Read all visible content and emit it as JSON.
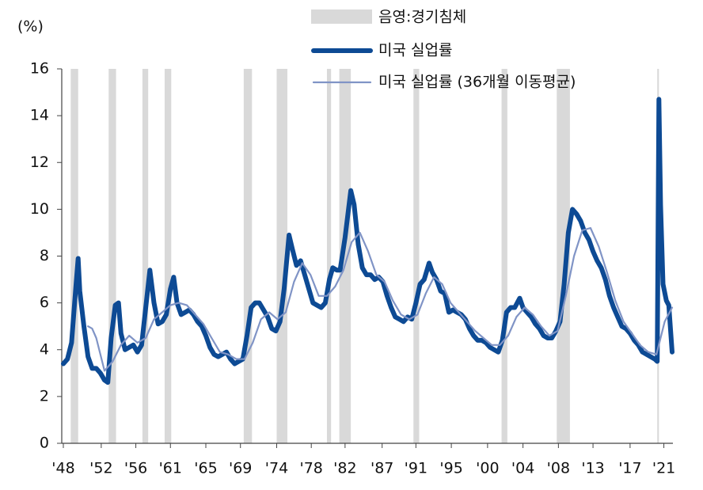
{
  "chart_data": {
    "type": "line",
    "y_label": "(%)",
    "xlim": [
      1948,
      2022
    ],
    "ylim": [
      0,
      16
    ],
    "yticks": [
      0,
      2,
      4,
      6,
      8,
      10,
      12,
      14,
      16
    ],
    "xticks": [
      {
        "value": 1948.0,
        "label": "'48"
      },
      {
        "value": 1952.6,
        "label": "'52"
      },
      {
        "value": 1956.8,
        "label": "'56"
      },
      {
        "value": 1961.0,
        "label": "'61"
      },
      {
        "value": 1965.3,
        "label": "'65"
      },
      {
        "value": 1969.5,
        "label": "'69"
      },
      {
        "value": 1973.9,
        "label": "'74"
      },
      {
        "value": 1978.1,
        "label": "'78"
      },
      {
        "value": 1982.2,
        "label": "'82"
      },
      {
        "value": 1986.7,
        "label": "'87"
      },
      {
        "value": 1990.8,
        "label": "'91"
      },
      {
        "value": 1995.1,
        "label": "'95"
      },
      {
        "value": 1999.5,
        "label": "'00"
      },
      {
        "value": 2003.8,
        "label": "'04"
      },
      {
        "value": 2008.1,
        "label": "'08"
      },
      {
        "value": 2012.3,
        "label": "'13"
      },
      {
        "value": 2016.8,
        "label": "'17"
      },
      {
        "value": 2020.9,
        "label": "'21"
      }
    ],
    "grid": false,
    "recessions": {
      "name": "음영:경기침체",
      "color": "#d9d9d9",
      "ranges": [
        [
          1948.9,
          1949.8
        ],
        [
          1953.5,
          1954.4
        ],
        [
          1957.6,
          1958.3
        ],
        [
          1960.3,
          1961.1
        ],
        [
          1969.9,
          1970.9
        ],
        [
          1973.9,
          1975.2
        ],
        [
          1980.0,
          1980.5
        ],
        [
          1981.5,
          1982.9
        ],
        [
          1990.5,
          1991.2
        ],
        [
          2001.2,
          2001.9
        ],
        [
          2007.9,
          2009.5
        ],
        [
          2020.1,
          2020.3
        ]
      ]
    },
    "series": [
      {
        "name": "미국 실업률",
        "color": "#0d4a94",
        "width": 6,
        "x": [
          1948.0,
          1948.5,
          1949.0,
          1949.5,
          1949.8,
          1950.0,
          1950.5,
          1951.0,
          1951.5,
          1952.0,
          1952.5,
          1953.0,
          1953.4,
          1953.8,
          1954.3,
          1954.7,
          1955.0,
          1955.5,
          1956.0,
          1956.5,
          1957.0,
          1957.5,
          1958.0,
          1958.5,
          1959.0,
          1959.5,
          1960.0,
          1960.5,
          1961.0,
          1961.4,
          1961.8,
          1962.3,
          1962.8,
          1963.3,
          1963.8,
          1964.3,
          1964.8,
          1965.3,
          1965.8,
          1966.3,
          1966.8,
          1967.3,
          1967.8,
          1968.3,
          1968.8,
          1969.3,
          1969.8,
          1970.3,
          1970.8,
          1971.3,
          1971.8,
          1972.3,
          1972.8,
          1973.3,
          1973.8,
          1974.3,
          1974.8,
          1975.4,
          1975.8,
          1976.3,
          1976.8,
          1977.3,
          1977.8,
          1978.3,
          1978.8,
          1979.3,
          1979.8,
          1980.3,
          1980.7,
          1981.2,
          1981.6,
          1982.2,
          1982.9,
          1983.3,
          1983.8,
          1984.3,
          1984.8,
          1985.3,
          1985.8,
          1986.3,
          1986.8,
          1987.3,
          1987.8,
          1988.3,
          1988.8,
          1989.3,
          1989.8,
          1990.3,
          1990.8,
          1991.3,
          1991.8,
          1992.4,
          1992.8,
          1993.3,
          1993.8,
          1994.3,
          1994.8,
          1995.3,
          1995.8,
          1996.3,
          1996.8,
          1997.3,
          1997.8,
          1998.3,
          1998.8,
          1999.3,
          1999.8,
          2000.3,
          2000.8,
          2001.3,
          2001.8,
          2002.3,
          2002.8,
          2003.4,
          2003.8,
          2004.3,
          2004.8,
          2005.3,
          2005.8,
          2006.3,
          2006.8,
          2007.3,
          2007.8,
          2008.3,
          2008.8,
          2009.3,
          2009.8,
          2010.3,
          2010.8,
          2011.3,
          2011.8,
          2012.3,
          2012.8,
          2013.3,
          2013.8,
          2014.3,
          2014.8,
          2015.3,
          2015.8,
          2016.3,
          2016.8,
          2017.3,
          2017.8,
          2018.3,
          2018.8,
          2019.3,
          2019.8,
          2020.1,
          2020.3,
          2020.5,
          2020.8,
          2021.2,
          2021.5,
          2021.9
        ],
        "values": [
          3.4,
          3.6,
          4.3,
          6.6,
          7.9,
          6.5,
          5.0,
          3.7,
          3.2,
          3.2,
          3.0,
          2.7,
          2.6,
          4.5,
          5.9,
          6.0,
          4.7,
          4.0,
          4.1,
          4.2,
          3.9,
          4.2,
          5.8,
          7.4,
          6.0,
          5.1,
          5.2,
          5.5,
          6.6,
          7.1,
          6.0,
          5.5,
          5.6,
          5.7,
          5.5,
          5.2,
          5.0,
          4.6,
          4.1,
          3.8,
          3.7,
          3.8,
          3.9,
          3.6,
          3.4,
          3.5,
          3.6,
          4.6,
          5.8,
          6.0,
          6.0,
          5.7,
          5.4,
          4.9,
          4.8,
          5.2,
          6.6,
          8.9,
          8.3,
          7.6,
          7.8,
          7.2,
          6.6,
          6.0,
          5.9,
          5.8,
          6.0,
          7.0,
          7.5,
          7.4,
          7.4,
          8.8,
          10.8,
          10.2,
          8.5,
          7.5,
          7.2,
          7.2,
          7.0,
          7.1,
          6.9,
          6.3,
          5.8,
          5.4,
          5.3,
          5.2,
          5.4,
          5.3,
          6.0,
          6.8,
          7.0,
          7.7,
          7.3,
          7.0,
          6.5,
          6.4,
          5.6,
          5.7,
          5.6,
          5.5,
          5.3,
          4.9,
          4.6,
          4.4,
          4.4,
          4.3,
          4.1,
          4.0,
          3.9,
          4.4,
          5.6,
          5.8,
          5.8,
          6.2,
          5.8,
          5.6,
          5.4,
          5.1,
          4.9,
          4.6,
          4.5,
          4.5,
          4.8,
          5.2,
          6.8,
          9.0,
          10.0,
          9.8,
          9.5,
          9.0,
          8.7,
          8.2,
          7.8,
          7.5,
          7.0,
          6.3,
          5.8,
          5.4,
          5.0,
          4.9,
          4.7,
          4.4,
          4.2,
          3.9,
          3.8,
          3.7,
          3.6,
          3.5,
          14.7,
          10.2,
          6.8,
          6.1,
          5.9,
          3.9
        ]
      },
      {
        "name": "미국 실업률 (36개월 이동평균)",
        "color": "#8094c6",
        "width": 2.2,
        "x": [
          1951.0,
          1951.5,
          1952.0,
          1953.0,
          1954.0,
          1955.0,
          1956.0,
          1957.0,
          1958.0,
          1959.0,
          1960.0,
          1961.0,
          1962.0,
          1963.0,
          1964.0,
          1965.0,
          1966.0,
          1967.0,
          1968.0,
          1969.0,
          1970.0,
          1971.0,
          1972.0,
          1973.0,
          1974.0,
          1975.0,
          1976.0,
          1977.0,
          1978.0,
          1979.0,
          1980.0,
          1981.0,
          1982.0,
          1983.0,
          1984.0,
          1985.0,
          1986.0,
          1987.0,
          1988.0,
          1989.0,
          1990.0,
          1991.0,
          1992.0,
          1993.0,
          1994.0,
          1995.0,
          1996.0,
          1997.0,
          1998.0,
          1999.0,
          2000.0,
          2001.0,
          2002.0,
          2003.0,
          2004.0,
          2005.0,
          2006.0,
          2007.0,
          2008.0,
          2009.0,
          2010.0,
          2011.0,
          2012.0,
          2013.0,
          2014.0,
          2015.0,
          2016.0,
          2017.0,
          2018.0,
          2019.0,
          2020.0,
          2021.0,
          2021.9
        ],
        "values": [
          5.0,
          4.9,
          4.5,
          3.1,
          3.5,
          4.2,
          4.6,
          4.3,
          4.5,
          5.3,
          5.6,
          5.9,
          6.0,
          5.9,
          5.5,
          5.1,
          4.5,
          3.9,
          3.8,
          3.6,
          3.6,
          4.3,
          5.3,
          5.6,
          5.3,
          5.6,
          6.9,
          7.7,
          7.2,
          6.3,
          6.3,
          6.7,
          7.4,
          8.6,
          9.0,
          8.2,
          7.2,
          6.9,
          6.1,
          5.5,
          5.3,
          5.5,
          6.4,
          7.1,
          6.8,
          6.0,
          5.6,
          5.2,
          4.8,
          4.5,
          4.2,
          4.2,
          4.6,
          5.4,
          5.8,
          5.5,
          5.0,
          4.6,
          4.8,
          6.3,
          8.0,
          9.1,
          9.2,
          8.4,
          7.3,
          6.1,
          5.2,
          4.7,
          4.2,
          3.9,
          3.8,
          5.2,
          5.8
        ]
      }
    ]
  }
}
